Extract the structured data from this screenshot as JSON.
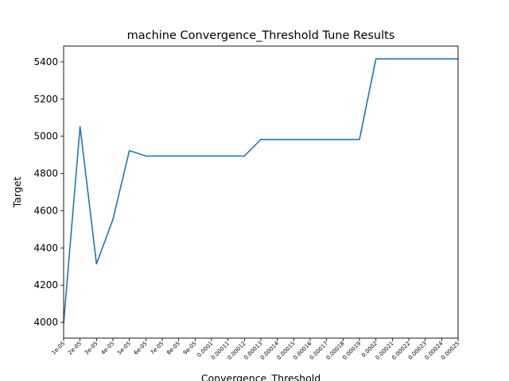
{
  "chart_data": {
    "type": "line",
    "title": "machine Convergence_Threshold Tune Results",
    "xlabel": "Convergence_Threshold",
    "ylabel": "Target",
    "x_tick_labels": [
      "1e-05",
      "2e-05",
      "3e-05",
      "4e-05",
      "5e-05",
      "6e-05",
      "7e-05",
      "8e-05",
      "9e-05",
      "0.0001",
      "0.00011",
      "0.00012",
      "0.00013",
      "0.00014",
      "0.00015",
      "0.00016",
      "0.00017",
      "0.00018",
      "0.00019",
      "0.0002",
      "0.00021",
      "0.00022",
      "0.00023",
      "0.00024",
      "0.00025"
    ],
    "y_ticks": [
      4000,
      4200,
      4400,
      4600,
      4800,
      5000,
      5200,
      5400
    ],
    "ylim": [
      3915,
      5485
    ],
    "xlim": [
      1e-05,
      0.00025
    ],
    "grid": false,
    "series": [
      {
        "color": "#1f77b4",
        "x": [
          1e-05,
          2e-05,
          3e-05,
          4e-05,
          5e-05,
          6e-05,
          7e-05,
          8e-05,
          9e-05,
          0.0001,
          0.00011,
          0.00012,
          0.00013,
          0.00014,
          0.00015,
          0.00016,
          0.00017,
          0.00018,
          0.00019,
          0.0002,
          0.00021,
          0.00022,
          0.00023,
          0.00024,
          0.00025
        ],
        "y": [
          3995,
          5052,
          4314,
          4553,
          4923,
          4894,
          4894,
          4894,
          4894,
          4894,
          4894,
          4894,
          4983,
          4983,
          4983,
          4983,
          4983,
          4983,
          4983,
          5416,
          5416,
          5416,
          5416,
          5416,
          5416
        ]
      }
    ]
  }
}
